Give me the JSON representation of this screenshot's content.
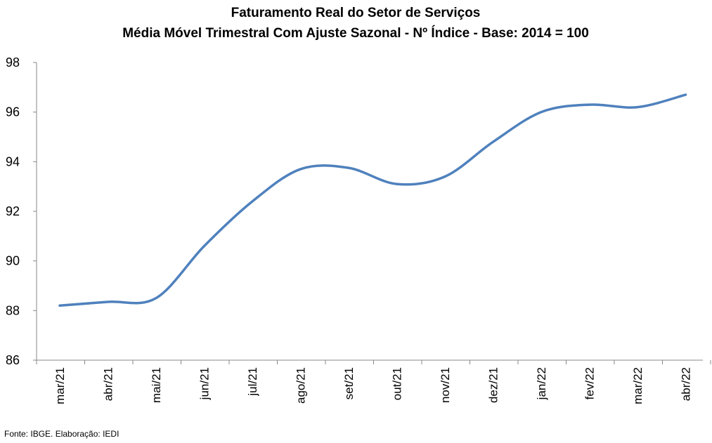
{
  "chart_data": {
    "type": "line",
    "title": "Faturamento Real do Setor de Serviços",
    "subtitle": "Média Móvel Trimestral Com Ajuste Sazonal - Nº Índice - Base: 2014 = 100",
    "categories": [
      "mar/21",
      "abr/21",
      "mai/21",
      "jun/21",
      "jul/21",
      "ago/21",
      "set/21",
      "out/21",
      "nov/21",
      "dez/21",
      "jan/22",
      "fev/22",
      "mar/22",
      "abr/22"
    ],
    "series": [
      {
        "values": [
          88.2,
          88.35,
          88.5,
          90.6,
          92.4,
          93.7,
          93.75,
          93.1,
          93.4,
          94.8,
          96.0,
          96.3,
          96.2,
          96.7
        ],
        "color": "#4f81bd"
      }
    ],
    "ylim": [
      86,
      98
    ],
    "yticks": [
      86,
      88,
      90,
      92,
      94,
      96,
      98
    ],
    "grid": false,
    "legend": "none"
  },
  "source": "Fonte: IBGE. Elaboração: IEDI"
}
